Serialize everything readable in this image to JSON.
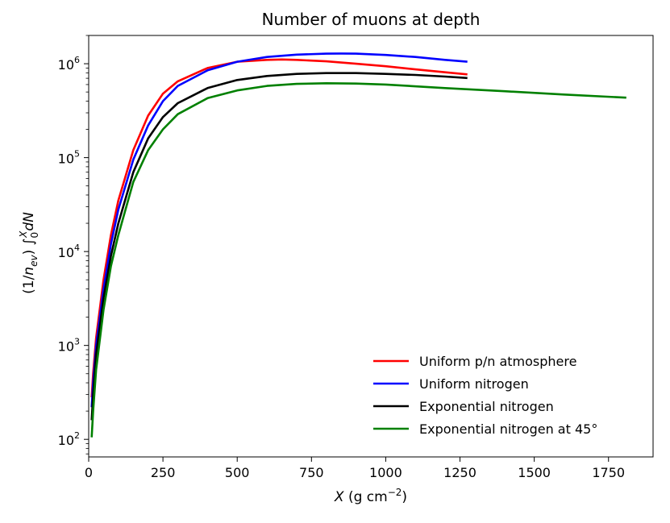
{
  "chart_data": {
    "type": "line",
    "title": "Number of muons at depth",
    "xlabel": "X (g cm⁻²)",
    "ylabel": "(1/n_ev) ∫₀^X dN",
    "xlim": [
      0,
      1900
    ],
    "ylim": [
      65,
      2000000
    ],
    "yscale": "log",
    "x_ticks": [
      0,
      250,
      500,
      750,
      1000,
      1250,
      1500,
      1750
    ],
    "y_ticks": [
      100,
      1000,
      10000,
      100000,
      1000000
    ],
    "y_tick_exponents": [
      "2",
      "3",
      "4",
      "5",
      "6"
    ],
    "grid": false,
    "legend_position": "lower-right",
    "series": [
      {
        "name": "Uniform p/n atmosphere",
        "color": "#ff0000",
        "x": [
          10,
          15,
          25,
          50,
          75,
          100,
          150,
          200,
          250,
          300,
          400,
          500,
          600,
          650,
          700,
          800,
          900,
          1000,
          1100,
          1200,
          1275
        ],
        "y": [
          280,
          500,
          1200,
          5000,
          15000,
          35000,
          120000,
          280000,
          480000,
          650000,
          900000,
          1050000,
          1100000,
          1110000,
          1100000,
          1060000,
          1000000,
          940000,
          870000,
          810000,
          770000
        ]
      },
      {
        "name": "Uniform nitrogen",
        "color": "#0000ff",
        "x": [
          10,
          15,
          25,
          50,
          75,
          100,
          150,
          200,
          250,
          300,
          400,
          500,
          600,
          700,
          800,
          850,
          900,
          1000,
          1100,
          1200,
          1275
        ],
        "y": [
          220,
          400,
          1000,
          4000,
          12000,
          28000,
          95000,
          220000,
          400000,
          580000,
          850000,
          1050000,
          1180000,
          1250000,
          1280000,
          1285000,
          1280000,
          1240000,
          1180000,
          1100000,
          1050000
        ]
      },
      {
        "name": "Exponential nitrogen",
        "color": "#000000",
        "x": [
          10,
          15,
          25,
          50,
          75,
          100,
          150,
          200,
          250,
          300,
          400,
          500,
          600,
          700,
          800,
          900,
          1000,
          1100,
          1200,
          1275
        ],
        "y": [
          160,
          300,
          800,
          3200,
          9000,
          20000,
          70000,
          160000,
          270000,
          380000,
          550000,
          670000,
          740000,
          780000,
          795000,
          795000,
          780000,
          760000,
          730000,
          705000
        ]
      },
      {
        "name": "Exponential nitrogen at 45°",
        "color": "#008000",
        "x": [
          10,
          15,
          25,
          50,
          75,
          100,
          150,
          200,
          250,
          300,
          400,
          500,
          600,
          700,
          800,
          900,
          1000,
          1200,
          1400,
          1600,
          1810
        ],
        "y": [
          105,
          200,
          550,
          2400,
          7000,
          15000,
          55000,
          120000,
          200000,
          290000,
          430000,
          520000,
          580000,
          610000,
          620000,
          615000,
          600000,
          550000,
          510000,
          470000,
          435000
        ]
      }
    ]
  }
}
